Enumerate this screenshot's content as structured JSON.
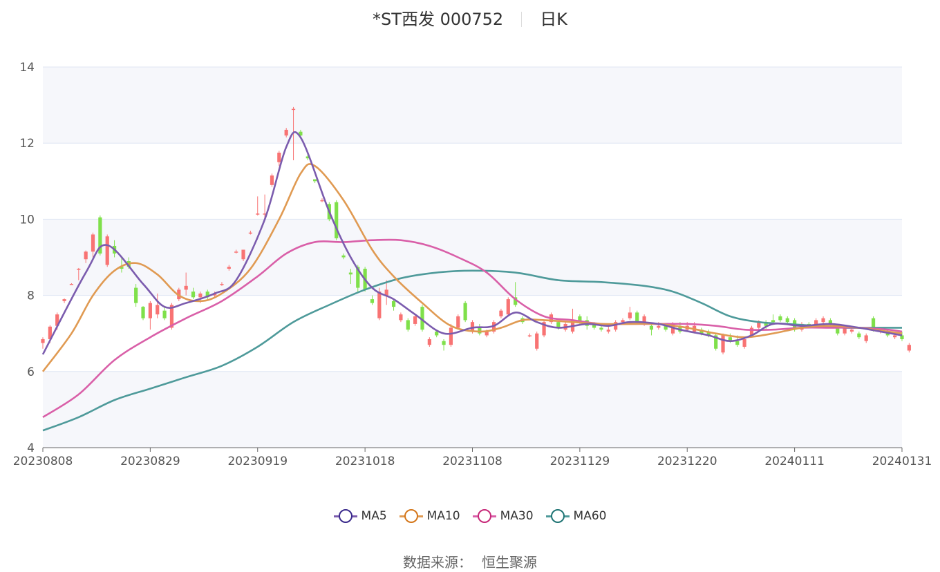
{
  "header": {
    "title": "*ST西发 000752",
    "period": "日K"
  },
  "source": {
    "label": "数据来源：",
    "value": "恒生聚源"
  },
  "colors": {
    "up": "#f87373",
    "down": "#7fe04a",
    "ma5": "#7b5cae",
    "ma10": "#e09a52",
    "ma30": "#d95fa8",
    "ma60": "#4e9a9a"
  },
  "chart_data": {
    "type": "candlestick",
    "title": "*ST西发 000752",
    "ylim": [
      4,
      14
    ],
    "y_ticks": [
      4,
      6,
      8,
      10,
      12,
      14
    ],
    "x_ticks": [
      "20230808",
      "20230829",
      "20230919",
      "20231018",
      "20231108",
      "20231129",
      "20231220",
      "20240111",
      "20240131"
    ],
    "x_tick_index": [
      0,
      15,
      30,
      45,
      60,
      75,
      90,
      105,
      120
    ],
    "grid": true,
    "legend_position": "bottom",
    "legend": [
      {
        "name": "MA5",
        "color": "#7b5cae",
        "ring": "#3a2a8c"
      },
      {
        "name": "MA10",
        "color": "#e09a52",
        "ring": "#d4761a"
      },
      {
        "name": "MA30",
        "color": "#d95fa8",
        "ring": "#c72878"
      },
      {
        "name": "MA60",
        "color": "#4e9a9a",
        "ring": "#1f7474"
      }
    ],
    "candles": [
      [
        6.75,
        6.85,
        6.6,
        6.9
      ],
      [
        6.85,
        7.18,
        6.75,
        7.22
      ],
      [
        7.2,
        7.5,
        7.1,
        7.55
      ],
      [
        7.85,
        7.9,
        7.8,
        7.92
      ],
      [
        8.3,
        8.3,
        8.3,
        8.32
      ],
      [
        8.7,
        8.7,
        8.4,
        8.72
      ],
      [
        8.95,
        9.15,
        8.85,
        9.18
      ],
      [
        9.15,
        9.6,
        8.95,
        9.65
      ],
      [
        10.05,
        9.1,
        9.05,
        10.1
      ],
      [
        8.8,
        9.55,
        8.75,
        9.6
      ],
      [
        9.3,
        9.1,
        9.0,
        9.45
      ],
      [
        8.75,
        8.7,
        8.6,
        9.0
      ],
      [
        8.9,
        8.75,
        8.7,
        9.0
      ],
      [
        8.2,
        7.8,
        7.7,
        8.3
      ],
      [
        7.7,
        7.4,
        7.35,
        7.72
      ],
      [
        7.4,
        7.8,
        7.1,
        7.85
      ],
      [
        7.5,
        7.75,
        7.4,
        8.05
      ],
      [
        7.6,
        7.4,
        7.35,
        7.72
      ],
      [
        7.15,
        7.75,
        7.1,
        7.8
      ],
      [
        7.9,
        8.15,
        7.85,
        8.2
      ],
      [
        8.15,
        8.25,
        8.0,
        8.6
      ],
      [
        8.1,
        7.95,
        7.9,
        8.2
      ],
      [
        7.95,
        8.05,
        7.8,
        8.1
      ],
      [
        8.1,
        7.95,
        7.9,
        8.15
      ],
      [
        8.0,
        8.05,
        7.95,
        8.1
      ],
      [
        8.3,
        8.3,
        8.25,
        8.35
      ],
      [
        8.7,
        8.75,
        8.65,
        8.8
      ],
      [
        9.15,
        9.15,
        9.1,
        9.2
      ],
      [
        8.95,
        9.2,
        8.9,
        9.2
      ],
      [
        9.65,
        9.65,
        9.6,
        9.7
      ],
      [
        10.15,
        10.15,
        10.1,
        10.6
      ],
      [
        10.15,
        10.15,
        10.0,
        10.65
      ],
      [
        10.9,
        11.15,
        10.85,
        11.2
      ],
      [
        11.5,
        11.75,
        11.4,
        11.8
      ],
      [
        12.2,
        12.35,
        12.15,
        12.4
      ],
      [
        12.9,
        12.9,
        11.55,
        12.95
      ],
      [
        12.3,
        12.2,
        12.15,
        12.35
      ],
      [
        11.65,
        11.6,
        11.55,
        11.7
      ],
      [
        11.05,
        11.0,
        10.95,
        11.05
      ],
      [
        10.5,
        10.5,
        10.45,
        10.55
      ],
      [
        10.4,
        10.0,
        9.95,
        10.45
      ],
      [
        10.45,
        9.5,
        9.45,
        10.5
      ],
      [
        9.05,
        9.0,
        8.95,
        9.1
      ],
      [
        8.6,
        8.55,
        8.3,
        8.7
      ],
      [
        8.75,
        8.2,
        8.1,
        8.8
      ],
      [
        8.7,
        8.15,
        8.1,
        8.75
      ],
      [
        7.9,
        7.8,
        7.75,
        8.0
      ],
      [
        7.4,
        8.1,
        7.35,
        8.2
      ],
      [
        8.0,
        8.15,
        7.75,
        8.4
      ],
      [
        7.85,
        7.7,
        7.6,
        7.9
      ],
      [
        7.35,
        7.5,
        7.3,
        7.55
      ],
      [
        7.35,
        7.1,
        7.05,
        7.4
      ],
      [
        7.25,
        7.45,
        7.2,
        7.5
      ],
      [
        7.7,
        7.1,
        7.05,
        7.75
      ],
      [
        6.7,
        6.85,
        6.65,
        6.9
      ],
      [
        7.05,
        6.95,
        6.9,
        7.1
      ],
      [
        6.8,
        6.7,
        6.55,
        6.85
      ],
      [
        6.7,
        7.15,
        6.65,
        7.25
      ],
      [
        7.15,
        7.45,
        7.1,
        7.5
      ],
      [
        7.8,
        7.35,
        7.3,
        7.85
      ],
      [
        7.05,
        7.3,
        7.0,
        7.35
      ],
      [
        7.15,
        7.0,
        6.95,
        7.25
      ],
      [
        6.95,
        7.05,
        6.9,
        7.1
      ],
      [
        7.05,
        7.3,
        7.0,
        7.35
      ],
      [
        7.45,
        7.6,
        7.4,
        7.65
      ],
      [
        7.5,
        7.9,
        7.45,
        7.95
      ],
      [
        7.95,
        7.75,
        7.7,
        8.35
      ],
      [
        7.4,
        7.3,
        7.25,
        7.45
      ],
      [
        6.95,
        6.95,
        6.9,
        7.0
      ],
      [
        6.6,
        7.0,
        6.55,
        7.05
      ],
      [
        6.95,
        7.3,
        6.9,
        7.35
      ],
      [
        7.3,
        7.5,
        7.25,
        7.55
      ],
      [
        7.3,
        7.15,
        7.1,
        7.35
      ],
      [
        7.1,
        7.25,
        7.05,
        7.3
      ],
      [
        7.05,
        7.35,
        7.0,
        7.65
      ],
      [
        7.45,
        7.3,
        7.25,
        7.5
      ],
      [
        7.35,
        7.2,
        7.1,
        7.45
      ],
      [
        7.25,
        7.15,
        7.1,
        7.3
      ],
      [
        7.15,
        7.1,
        7.05,
        7.2
      ],
      [
        7.05,
        7.1,
        7.0,
        7.25
      ],
      [
        7.1,
        7.3,
        7.05,
        7.35
      ],
      [
        7.3,
        7.35,
        7.25,
        7.4
      ],
      [
        7.4,
        7.55,
        7.35,
        7.7
      ],
      [
        7.55,
        7.3,
        7.25,
        7.6
      ],
      [
        7.3,
        7.45,
        7.2,
        7.5
      ],
      [
        7.2,
        7.1,
        6.95,
        7.25
      ],
      [
        7.15,
        7.2,
        7.1,
        7.3
      ],
      [
        7.2,
        7.1,
        7.05,
        7.25
      ],
      [
        7.0,
        7.25,
        6.95,
        7.3
      ],
      [
        7.2,
        7.05,
        7.0,
        7.3
      ],
      [
        7.1,
        7.2,
        7.05,
        7.3
      ],
      [
        7.05,
        7.2,
        7.0,
        7.3
      ],
      [
        7.1,
        7.0,
        6.95,
        7.15
      ],
      [
        7.05,
        6.95,
        6.9,
        7.1
      ],
      [
        6.95,
        6.6,
        6.55,
        7.0
      ],
      [
        6.5,
        6.95,
        6.45,
        7.0
      ],
      [
        6.9,
        6.8,
        6.75,
        7.0
      ],
      [
        6.8,
        6.7,
        6.65,
        6.95
      ],
      [
        6.65,
        6.85,
        6.6,
        6.9
      ],
      [
        6.95,
        7.15,
        6.9,
        7.2
      ],
      [
        7.15,
        7.3,
        7.1,
        7.35
      ],
      [
        7.3,
        7.2,
        7.1,
        7.35
      ],
      [
        7.35,
        7.3,
        7.25,
        7.5
      ],
      [
        7.45,
        7.35,
        7.3,
        7.5
      ],
      [
        7.4,
        7.3,
        7.25,
        7.45
      ],
      [
        7.35,
        7.1,
        7.05,
        7.4
      ],
      [
        7.1,
        7.25,
        7.05,
        7.3
      ],
      [
        7.25,
        7.2,
        7.15,
        7.3
      ],
      [
        7.2,
        7.35,
        7.15,
        7.4
      ],
      [
        7.3,
        7.4,
        7.25,
        7.45
      ],
      [
        7.35,
        7.25,
        7.2,
        7.4
      ],
      [
        7.2,
        7.0,
        6.95,
        7.25
      ],
      [
        7.0,
        7.15,
        6.95,
        7.2
      ],
      [
        7.05,
        7.1,
        7.0,
        7.15
      ],
      [
        7.0,
        6.9,
        6.85,
        7.05
      ],
      [
        6.8,
        6.95,
        6.75,
        7.0
      ],
      [
        7.4,
        7.1,
        7.05,
        7.45
      ],
      [
        7.05,
        7.1,
        7.0,
        7.15
      ],
      [
        7.05,
        6.95,
        6.9,
        7.1
      ],
      [
        6.9,
        6.95,
        6.85,
        7.0
      ],
      [
        6.95,
        6.85,
        6.8,
        7.05
      ],
      [
        6.55,
        6.7,
        6.5,
        6.75
      ]
    ],
    "series": [
      {
        "name": "MA5",
        "points": [
          [
            0,
            6.45
          ],
          [
            6,
            8.6
          ],
          [
            9,
            9.32
          ],
          [
            14,
            8.3
          ],
          [
            17,
            7.7
          ],
          [
            20,
            7.8
          ],
          [
            24,
            8.05
          ],
          [
            27,
            8.4
          ],
          [
            31,
            10.0
          ],
          [
            34,
            11.9
          ],
          [
            36,
            12.15
          ],
          [
            40,
            10.2
          ],
          [
            43,
            9.0
          ],
          [
            46,
            8.2
          ],
          [
            49,
            7.9
          ],
          [
            52,
            7.5
          ],
          [
            56,
            7.0
          ],
          [
            60,
            7.15
          ],
          [
            63,
            7.2
          ],
          [
            66,
            7.55
          ],
          [
            69,
            7.3
          ],
          [
            72,
            7.15
          ],
          [
            76,
            7.25
          ],
          [
            79,
            7.2
          ],
          [
            82,
            7.3
          ],
          [
            86,
            7.25
          ],
          [
            89,
            7.1
          ],
          [
            93,
            6.95
          ],
          [
            96,
            6.8
          ],
          [
            99,
            6.95
          ],
          [
            102,
            7.25
          ],
          [
            106,
            7.2
          ],
          [
            110,
            7.25
          ],
          [
            114,
            7.15
          ],
          [
            117,
            7.05
          ],
          [
            120,
            6.95
          ]
        ]
      },
      {
        "name": "MA10",
        "points": [
          [
            0,
            6.0
          ],
          [
            4,
            7.0
          ],
          [
            7,
            8.0
          ],
          [
            10,
            8.65
          ],
          [
            13,
            8.85
          ],
          [
            16,
            8.55
          ],
          [
            19,
            8.0
          ],
          [
            22,
            7.85
          ],
          [
            25,
            8.05
          ],
          [
            29,
            8.7
          ],
          [
            33,
            10.0
          ],
          [
            36,
            11.2
          ],
          [
            38,
            11.4
          ],
          [
            42,
            10.5
          ],
          [
            46,
            9.2
          ],
          [
            49,
            8.5
          ],
          [
            53,
            7.8
          ],
          [
            57,
            7.2
          ],
          [
            61,
            7.05
          ],
          [
            64,
            7.15
          ],
          [
            67,
            7.35
          ],
          [
            70,
            7.35
          ],
          [
            74,
            7.3
          ],
          [
            78,
            7.25
          ],
          [
            82,
            7.25
          ],
          [
            86,
            7.25
          ],
          [
            90,
            7.15
          ],
          [
            94,
            7.0
          ],
          [
            98,
            6.9
          ],
          [
            102,
            7.0
          ],
          [
            106,
            7.15
          ],
          [
            110,
            7.2
          ],
          [
            114,
            7.15
          ],
          [
            118,
            7.05
          ],
          [
            120,
            7.0
          ]
        ]
      },
      {
        "name": "MA30",
        "points": [
          [
            0,
            4.8
          ],
          [
            5,
            5.4
          ],
          [
            10,
            6.3
          ],
          [
            15,
            6.9
          ],
          [
            20,
            7.4
          ],
          [
            25,
            7.85
          ],
          [
            30,
            8.5
          ],
          [
            34,
            9.1
          ],
          [
            38,
            9.4
          ],
          [
            42,
            9.4
          ],
          [
            46,
            9.45
          ],
          [
            50,
            9.45
          ],
          [
            54,
            9.3
          ],
          [
            58,
            9.0
          ],
          [
            62,
            8.6
          ],
          [
            66,
            7.9
          ],
          [
            70,
            7.45
          ],
          [
            74,
            7.35
          ],
          [
            78,
            7.25
          ],
          [
            82,
            7.25
          ],
          [
            86,
            7.25
          ],
          [
            90,
            7.25
          ],
          [
            94,
            7.2
          ],
          [
            98,
            7.1
          ],
          [
            102,
            7.1
          ],
          [
            106,
            7.15
          ],
          [
            110,
            7.15
          ],
          [
            114,
            7.15
          ],
          [
            118,
            7.1
          ],
          [
            120,
            7.05
          ]
        ]
      },
      {
        "name": "MA60",
        "points": [
          [
            0,
            4.45
          ],
          [
            5,
            4.8
          ],
          [
            10,
            5.25
          ],
          [
            15,
            5.55
          ],
          [
            20,
            5.85
          ],
          [
            25,
            6.15
          ],
          [
            30,
            6.65
          ],
          [
            35,
            7.3
          ],
          [
            40,
            7.75
          ],
          [
            45,
            8.15
          ],
          [
            50,
            8.45
          ],
          [
            55,
            8.6
          ],
          [
            60,
            8.65
          ],
          [
            66,
            8.6
          ],
          [
            72,
            8.4
          ],
          [
            78,
            8.35
          ],
          [
            84,
            8.25
          ],
          [
            88,
            8.1
          ],
          [
            92,
            7.8
          ],
          [
            96,
            7.45
          ],
          [
            100,
            7.3
          ],
          [
            104,
            7.25
          ],
          [
            108,
            7.2
          ],
          [
            112,
            7.15
          ],
          [
            116,
            7.15
          ],
          [
            120,
            7.15
          ]
        ]
      }
    ]
  }
}
